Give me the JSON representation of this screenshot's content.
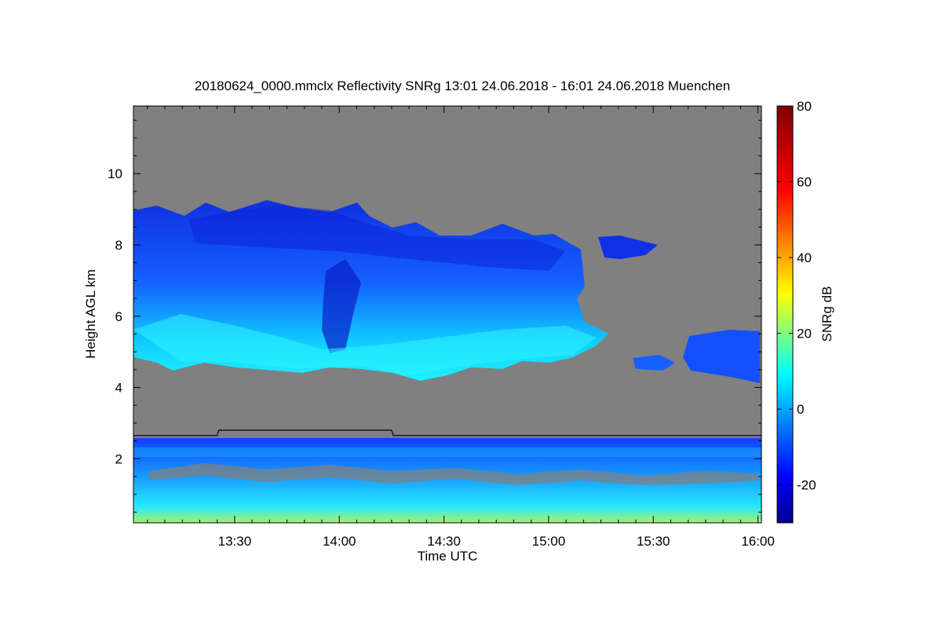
{
  "chart_data": {
    "type": "heatmap",
    "title": "20180624_0000.mmclx Reflectivity SNRg   13:01 24.06.2018 - 16:01 24.06.2018 Muenchen",
    "xlabel": "Time UTC",
    "ylabel": "Height AGL km",
    "x_ticks": [
      "13:30",
      "14:00",
      "14:30",
      "15:00",
      "15:30",
      "16:00"
    ],
    "x_tick_values_min": [
      30,
      60,
      90,
      120,
      150,
      180
    ],
    "xlim_min": [
      1,
      181
    ],
    "y_ticks": [
      "2",
      "4",
      "6",
      "8",
      "10"
    ],
    "y_tick_values": [
      2,
      4,
      6,
      8,
      10
    ],
    "ylim": [
      0.2,
      11.9
    ],
    "colorbar": {
      "label": "SNRg dB",
      "ticks": [
        "80",
        "60",
        "40",
        "20",
        "0",
        "-20"
      ],
      "tick_values": [
        80,
        60,
        40,
        20,
        0,
        -20
      ],
      "range": [
        -30,
        80
      ],
      "colormap": "jet",
      "colors": [
        "#00008f",
        "#0000ff",
        "#00ffff",
        "#ffff00",
        "#ff0000",
        "#800000"
      ]
    },
    "background_color": "#808080",
    "grid": false,
    "features": {
      "upper_cloud_main": {
        "x_min": [
          1,
          137
        ],
        "base_km": [
          4.9,
          4.6,
          4.5,
          4.3,
          4.4,
          4.7,
          5.3
        ],
        "top_km": [
          9.0,
          8.9,
          9.3,
          9.2,
          8.9,
          8.8,
          7.8
        ]
      },
      "upper_cloud_patch_right": {
        "x_min": [
          150,
          181
        ],
        "base_km": [
          4.3,
          4.5
        ],
        "top_km": [
          5.5,
          5.6
        ]
      },
      "lower_layer": {
        "x_min": [
          1,
          181
        ],
        "base_km": [
          0.2,
          0.2
        ],
        "top_km": [
          2.6,
          2.5
        ]
      },
      "boundary_line_km": [
        {
          "x_min": 1,
          "y_km": 2.65
        },
        {
          "x_min": 25,
          "y_km": 2.65
        },
        {
          "x_min": 25.5,
          "y_km": 2.8
        },
        {
          "x_min": 75,
          "y_km": 2.8
        },
        {
          "x_min": 75.5,
          "y_km": 2.65
        },
        {
          "x_min": 181,
          "y_km": 2.65
        }
      ]
    }
  }
}
